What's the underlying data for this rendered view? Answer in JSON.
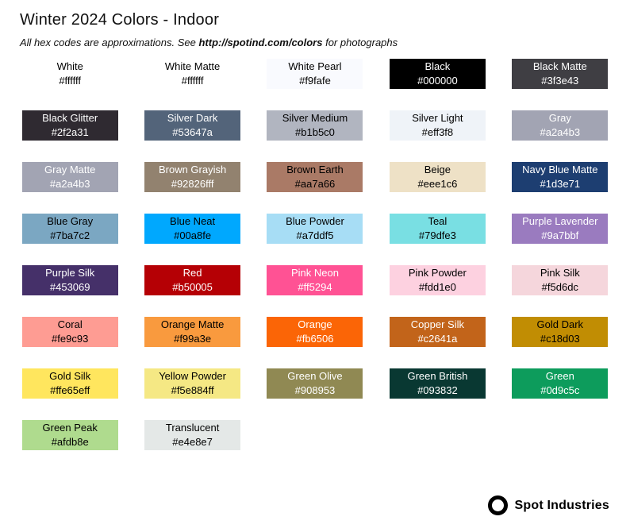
{
  "header": {
    "title": "Winter 2024 Colors - Indoor",
    "subtitle_prefix": "All hex codes are approximations. See ",
    "subtitle_link": "http://spotind.com/colors",
    "subtitle_suffix": " for photographs"
  },
  "swatches": [
    {
      "name": "White",
      "hex": "#ffffff",
      "bg": "#ffffff",
      "text": "#000000"
    },
    {
      "name": "White Matte",
      "hex": "#ffffff",
      "bg": "#ffffff",
      "text": "#000000"
    },
    {
      "name": "White Pearl",
      "hex": "#f9fafe",
      "bg": "#f9fafe",
      "text": "#000000"
    },
    {
      "name": "Black",
      "hex": "#000000",
      "bg": "#000000",
      "text": "#ffffff"
    },
    {
      "name": "Black Matte",
      "hex": "#3f3e43",
      "bg": "#3f3e43",
      "text": "#ffffff"
    },
    {
      "name": "Black Glitter",
      "hex": "#2f2a31",
      "bg": "#2f2a31",
      "text": "#ffffff"
    },
    {
      "name": "Silver Dark",
      "hex": "#53647a",
      "bg": "#53647a",
      "text": "#ffffff"
    },
    {
      "name": "Silver Medium",
      "hex": "#b1b5c0",
      "bg": "#b1b5c0",
      "text": "#000000"
    },
    {
      "name": "Silver Light",
      "hex": "#eff3f8",
      "bg": "#eff3f8",
      "text": "#000000"
    },
    {
      "name": "Gray",
      "hex": "#a2a4b3",
      "bg": "#a2a4b3",
      "text": "#ffffff"
    },
    {
      "name": "Gray Matte",
      "hex": "#a2a4b3",
      "bg": "#a2a4b3",
      "text": "#ffffff"
    },
    {
      "name": "Brown Grayish",
      "hex": "#92826fff",
      "bg": "#92826f",
      "text": "#ffffff"
    },
    {
      "name": "Brown Earth",
      "hex": "#aa7a66",
      "bg": "#aa7a66",
      "text": "#000000"
    },
    {
      "name": "Beige",
      "hex": "#eee1c6",
      "bg": "#eee1c6",
      "text": "#000000"
    },
    {
      "name": "Navy Blue Matte",
      "hex": "#1d3e71",
      "bg": "#1d3e71",
      "text": "#ffffff"
    },
    {
      "name": "Blue Gray",
      "hex": "#7ba7c2",
      "bg": "#7ba7c2",
      "text": "#000000"
    },
    {
      "name": "Blue Neat",
      "hex": "#00a8fe",
      "bg": "#00a8fe",
      "text": "#000000"
    },
    {
      "name": "Blue Powder",
      "hex": "#a7ddf5",
      "bg": "#a7ddf5",
      "text": "#000000"
    },
    {
      "name": "Teal",
      "hex": "#79dfe3",
      "bg": "#79dfe3",
      "text": "#000000"
    },
    {
      "name": "Purple Lavender",
      "hex": "#9a7bbf",
      "bg": "#9a7bbf",
      "text": "#ffffff"
    },
    {
      "name": "Purple Silk",
      "hex": "#453069",
      "bg": "#453069",
      "text": "#ffffff"
    },
    {
      "name": "Red",
      "hex": "#b50005",
      "bg": "#b50005",
      "text": "#ffffff"
    },
    {
      "name": "Pink Neon",
      "hex": "#ff5294",
      "bg": "#ff5294",
      "text": "#ffffff"
    },
    {
      "name": "Pink Powder",
      "hex": "#fdd1e0",
      "bg": "#fdd1e0",
      "text": "#000000"
    },
    {
      "name": "Pink Silk",
      "hex": "#f5d6dc",
      "bg": "#f5d6dc",
      "text": "#000000"
    },
    {
      "name": "Coral",
      "hex": "#fe9c93",
      "bg": "#fe9c93",
      "text": "#000000"
    },
    {
      "name": "Orange Matte",
      "hex": "#f99a3e",
      "bg": "#f99a3e",
      "text": "#000000"
    },
    {
      "name": "Orange",
      "hex": "#fb6506",
      "bg": "#fb6506",
      "text": "#ffffff"
    },
    {
      "name": "Copper Silk",
      "hex": "#c2641a",
      "bg": "#c2641a",
      "text": "#ffffff"
    },
    {
      "name": "Gold Dark",
      "hex": "#c18d03",
      "bg": "#c18d03",
      "text": "#000000"
    },
    {
      "name": "Gold Silk",
      "hex": "#ffe65eff",
      "bg": "#ffe65e",
      "text": "#000000"
    },
    {
      "name": "Yellow Powder",
      "hex": "#f5e884ff",
      "bg": "#f5e884",
      "text": "#000000"
    },
    {
      "name": "Green Olive",
      "hex": "#908953",
      "bg": "#908953",
      "text": "#ffffff"
    },
    {
      "name": "Green British",
      "hex": "#093832",
      "bg": "#093832",
      "text": "#ffffff"
    },
    {
      "name": "Green",
      "hex": "#0d9c5c",
      "bg": "#0d9c5c",
      "text": "#ffffff"
    },
    {
      "name": "Green Peak",
      "hex": "#afdb8e",
      "bg": "#afdb8e",
      "text": "#000000"
    },
    {
      "name": "Translucent",
      "hex": "#e4e8e7",
      "bg": "#e4e8e7",
      "text": "#000000"
    }
  ],
  "footer": {
    "brand": "Spot Industries"
  }
}
